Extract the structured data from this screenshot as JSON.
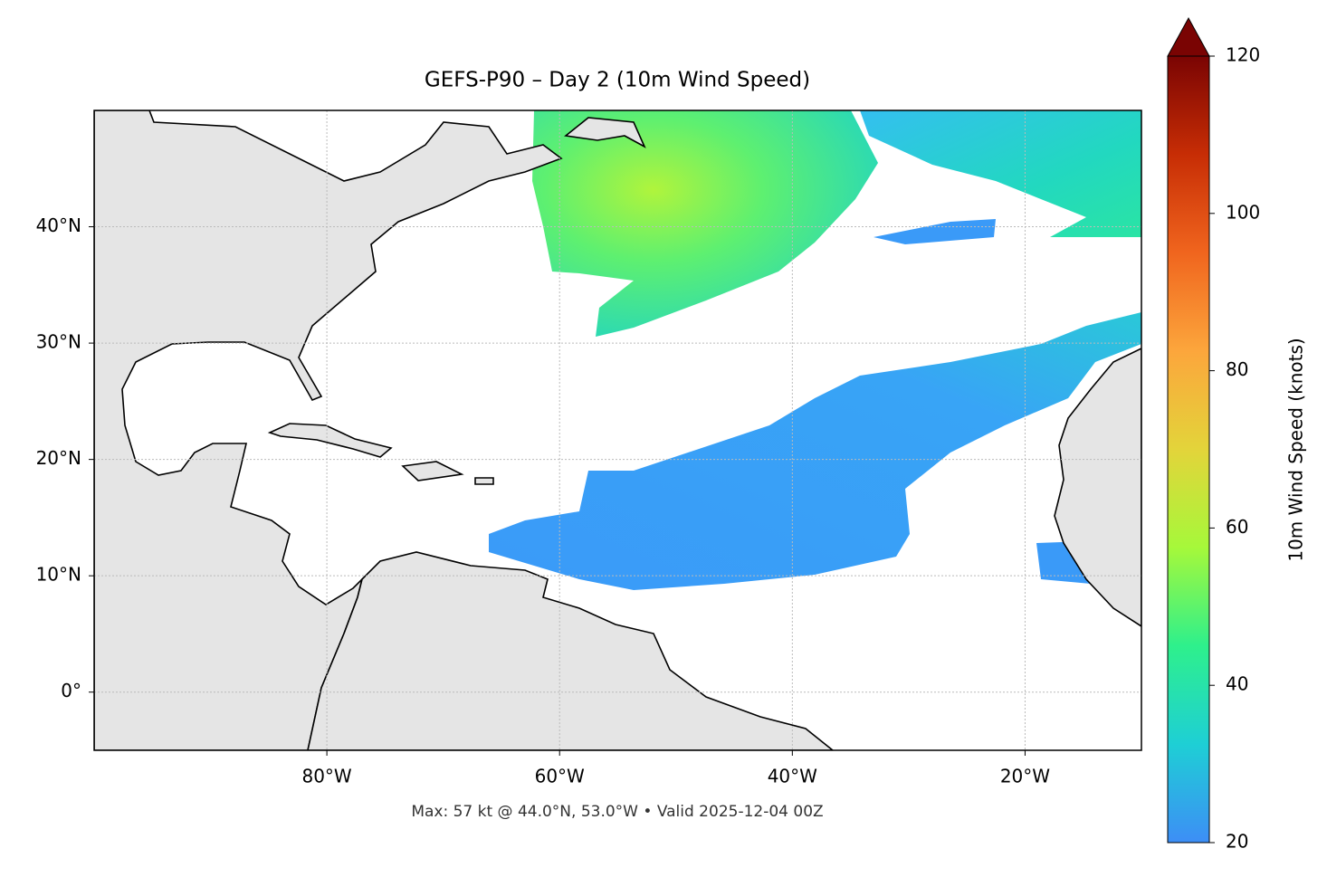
{
  "chart_data": {
    "type": "map",
    "title": "GEFS-P90 – Day 2 (10m Wind Speed)",
    "note": "Max: 57 kt @ 44.0°N, 53.0°W • Valid 2025-12-04 00Z",
    "xlim": [
      -100,
      -10
    ],
    "ylim": [
      -5,
      50
    ],
    "xticks": [
      {
        "value": -80,
        "label": "80°W"
      },
      {
        "value": -60,
        "label": "60°W"
      },
      {
        "value": -40,
        "label": "40°W"
      },
      {
        "value": -20,
        "label": "20°W"
      }
    ],
    "yticks": [
      {
        "value": 0,
        "label": "0°"
      },
      {
        "value": 10,
        "label": "10°N"
      },
      {
        "value": 20,
        "label": "20°N"
      },
      {
        "value": 30,
        "label": "30°N"
      },
      {
        "value": 40,
        "label": "40°N"
      }
    ],
    "grid": true,
    "colorbar": {
      "label": "10m Wind Speed (knots)",
      "lim": [
        20,
        120
      ],
      "ticks": [
        20,
        40,
        60,
        80,
        100,
        120
      ],
      "colors": [
        "#3d8ef6",
        "#1ecfd5",
        "#2ef08c",
        "#a6f83a",
        "#e3d43a",
        "#fca63c",
        "#f0651e",
        "#c72d05",
        "#7a0403"
      ]
    }
  }
}
